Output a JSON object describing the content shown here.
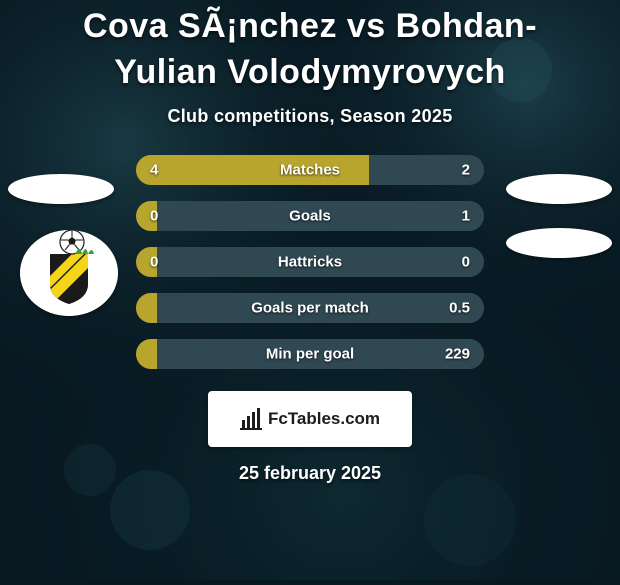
{
  "background_color": "#071821",
  "title_color": "#ffffff",
  "title": "Cova SÃ¡nchez vs Bohdan-Yulian Volodymyrovych",
  "subtitle": "Club competitions, Season 2025",
  "accent_left": "#b8a52e",
  "accent_right": "#2f4852",
  "row_track_color": "#2f4852",
  "rows": [
    {
      "label": "Matches",
      "left_value": "4",
      "right_value": "2",
      "left_pct": 67,
      "right_pct": 33
    },
    {
      "label": "Goals",
      "left_value": "0",
      "right_value": "1",
      "left_pct": 6,
      "right_pct": 94
    },
    {
      "label": "Hattricks",
      "left_value": "0",
      "right_value": "0",
      "left_pct": 6,
      "right_pct": 6
    },
    {
      "label": "Goals per match",
      "left_value": "",
      "right_value": "0.5",
      "left_pct": 6,
      "right_pct": 94
    },
    {
      "label": "Min per goal",
      "left_value": "",
      "right_value": "229",
      "left_pct": 6,
      "right_pct": 94
    }
  ],
  "side_ellipse_color": "#ffffff",
  "club_badge": {
    "bg": "#ffffff",
    "crest_bg": "#1a1a1a",
    "crest_stripe": "#f4d519",
    "ball_bg": "#ffffff",
    "ball_line": "#1a1a1a",
    "grass": "#3aa23a"
  },
  "brand": {
    "icon_color": "#1c1c1c",
    "text": "FcTables.com"
  },
  "date": "25 february 2025"
}
